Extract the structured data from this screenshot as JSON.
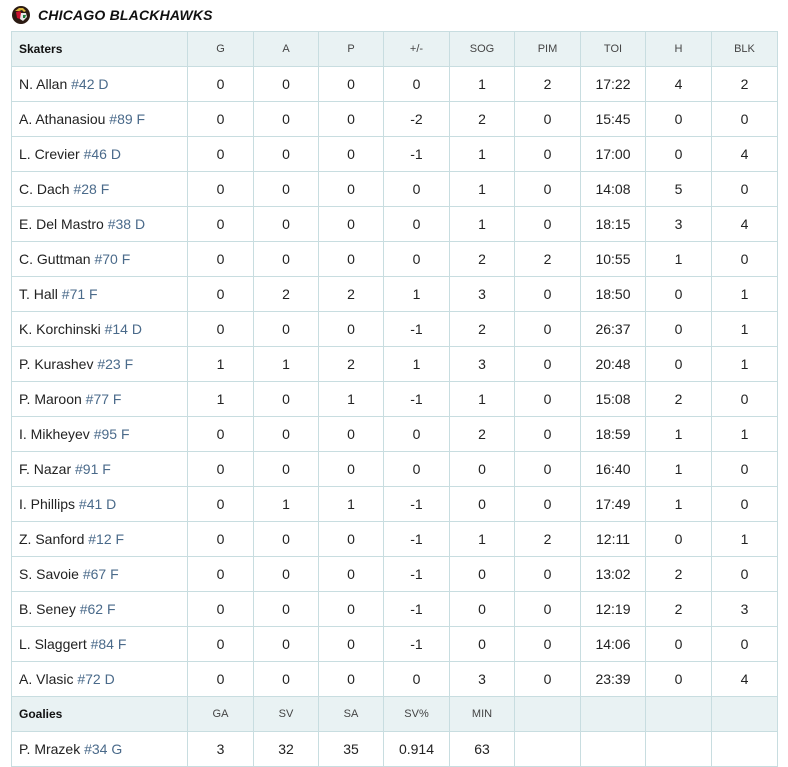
{
  "team": {
    "name": "CHICAGO BLACKHAWKS",
    "logo_icon": "blackhawks-logo-icon"
  },
  "skaters": {
    "header_label": "Skaters",
    "columns": [
      "G",
      "A",
      "P",
      "+/-",
      "SOG",
      "PIM",
      "TOI",
      "H",
      "BLK"
    ],
    "rows": [
      {
        "name": "N. Allan",
        "meta": "#42 D",
        "stats": [
          "0",
          "0",
          "0",
          "0",
          "1",
          "2",
          "17:22",
          "4",
          "2"
        ]
      },
      {
        "name": "A. Athanasiou",
        "meta": "#89 F",
        "stats": [
          "0",
          "0",
          "0",
          "-2",
          "2",
          "0",
          "15:45",
          "0",
          "0"
        ]
      },
      {
        "name": "L. Crevier",
        "meta": "#46 D",
        "stats": [
          "0",
          "0",
          "0",
          "-1",
          "1",
          "0",
          "17:00",
          "0",
          "4"
        ]
      },
      {
        "name": "C. Dach",
        "meta": "#28 F",
        "stats": [
          "0",
          "0",
          "0",
          "0",
          "1",
          "0",
          "14:08",
          "5",
          "0"
        ]
      },
      {
        "name": "E. Del Mastro",
        "meta": "#38 D",
        "stats": [
          "0",
          "0",
          "0",
          "0",
          "1",
          "0",
          "18:15",
          "3",
          "4"
        ]
      },
      {
        "name": "C. Guttman",
        "meta": "#70 F",
        "stats": [
          "0",
          "0",
          "0",
          "0",
          "2",
          "2",
          "10:55",
          "1",
          "0"
        ]
      },
      {
        "name": "T. Hall",
        "meta": "#71 F",
        "stats": [
          "0",
          "2",
          "2",
          "1",
          "3",
          "0",
          "18:50",
          "0",
          "1"
        ]
      },
      {
        "name": "K. Korchinski",
        "meta": "#14 D",
        "stats": [
          "0",
          "0",
          "0",
          "-1",
          "2",
          "0",
          "26:37",
          "0",
          "1"
        ]
      },
      {
        "name": "P. Kurashev",
        "meta": "#23 F",
        "stats": [
          "1",
          "1",
          "2",
          "1",
          "3",
          "0",
          "20:48",
          "0",
          "1"
        ]
      },
      {
        "name": "P. Maroon",
        "meta": "#77 F",
        "stats": [
          "1",
          "0",
          "1",
          "-1",
          "1",
          "0",
          "15:08",
          "2",
          "0"
        ]
      },
      {
        "name": "I. Mikheyev",
        "meta": "#95 F",
        "stats": [
          "0",
          "0",
          "0",
          "0",
          "2",
          "0",
          "18:59",
          "1",
          "1"
        ]
      },
      {
        "name": "F. Nazar",
        "meta": "#91 F",
        "stats": [
          "0",
          "0",
          "0",
          "0",
          "0",
          "0",
          "16:40",
          "1",
          "0"
        ]
      },
      {
        "name": "I. Phillips",
        "meta": "#41 D",
        "stats": [
          "0",
          "1",
          "1",
          "-1",
          "0",
          "0",
          "17:49",
          "1",
          "0"
        ]
      },
      {
        "name": "Z. Sanford",
        "meta": "#12 F",
        "stats": [
          "0",
          "0",
          "0",
          "-1",
          "1",
          "2",
          "12:11",
          "0",
          "1"
        ]
      },
      {
        "name": "S. Savoie",
        "meta": "#67 F",
        "stats": [
          "0",
          "0",
          "0",
          "-1",
          "0",
          "0",
          "13:02",
          "2",
          "0"
        ]
      },
      {
        "name": "B. Seney",
        "meta": "#62 F",
        "stats": [
          "0",
          "0",
          "0",
          "-1",
          "0",
          "0",
          "12:19",
          "2",
          "3"
        ]
      },
      {
        "name": "L. Slaggert",
        "meta": "#84 F",
        "stats": [
          "0",
          "0",
          "0",
          "-1",
          "0",
          "0",
          "14:06",
          "0",
          "0"
        ]
      },
      {
        "name": "A. Vlasic",
        "meta": "#72 D",
        "stats": [
          "0",
          "0",
          "0",
          "0",
          "3",
          "0",
          "23:39",
          "0",
          "4"
        ]
      }
    ]
  },
  "goalies": {
    "header_label": "Goalies",
    "columns": [
      "GA",
      "SV",
      "SA",
      "SV%",
      "MIN"
    ],
    "rows": [
      {
        "name": "P. Mrazek",
        "meta": "#34 G",
        "stats": [
          "3",
          "32",
          "35",
          "0.914",
          "63"
        ]
      }
    ]
  },
  "colors": {
    "header_bg": "#e9f2f3",
    "border": "#c8dde0",
    "meta_text": "#4a6a8a"
  }
}
